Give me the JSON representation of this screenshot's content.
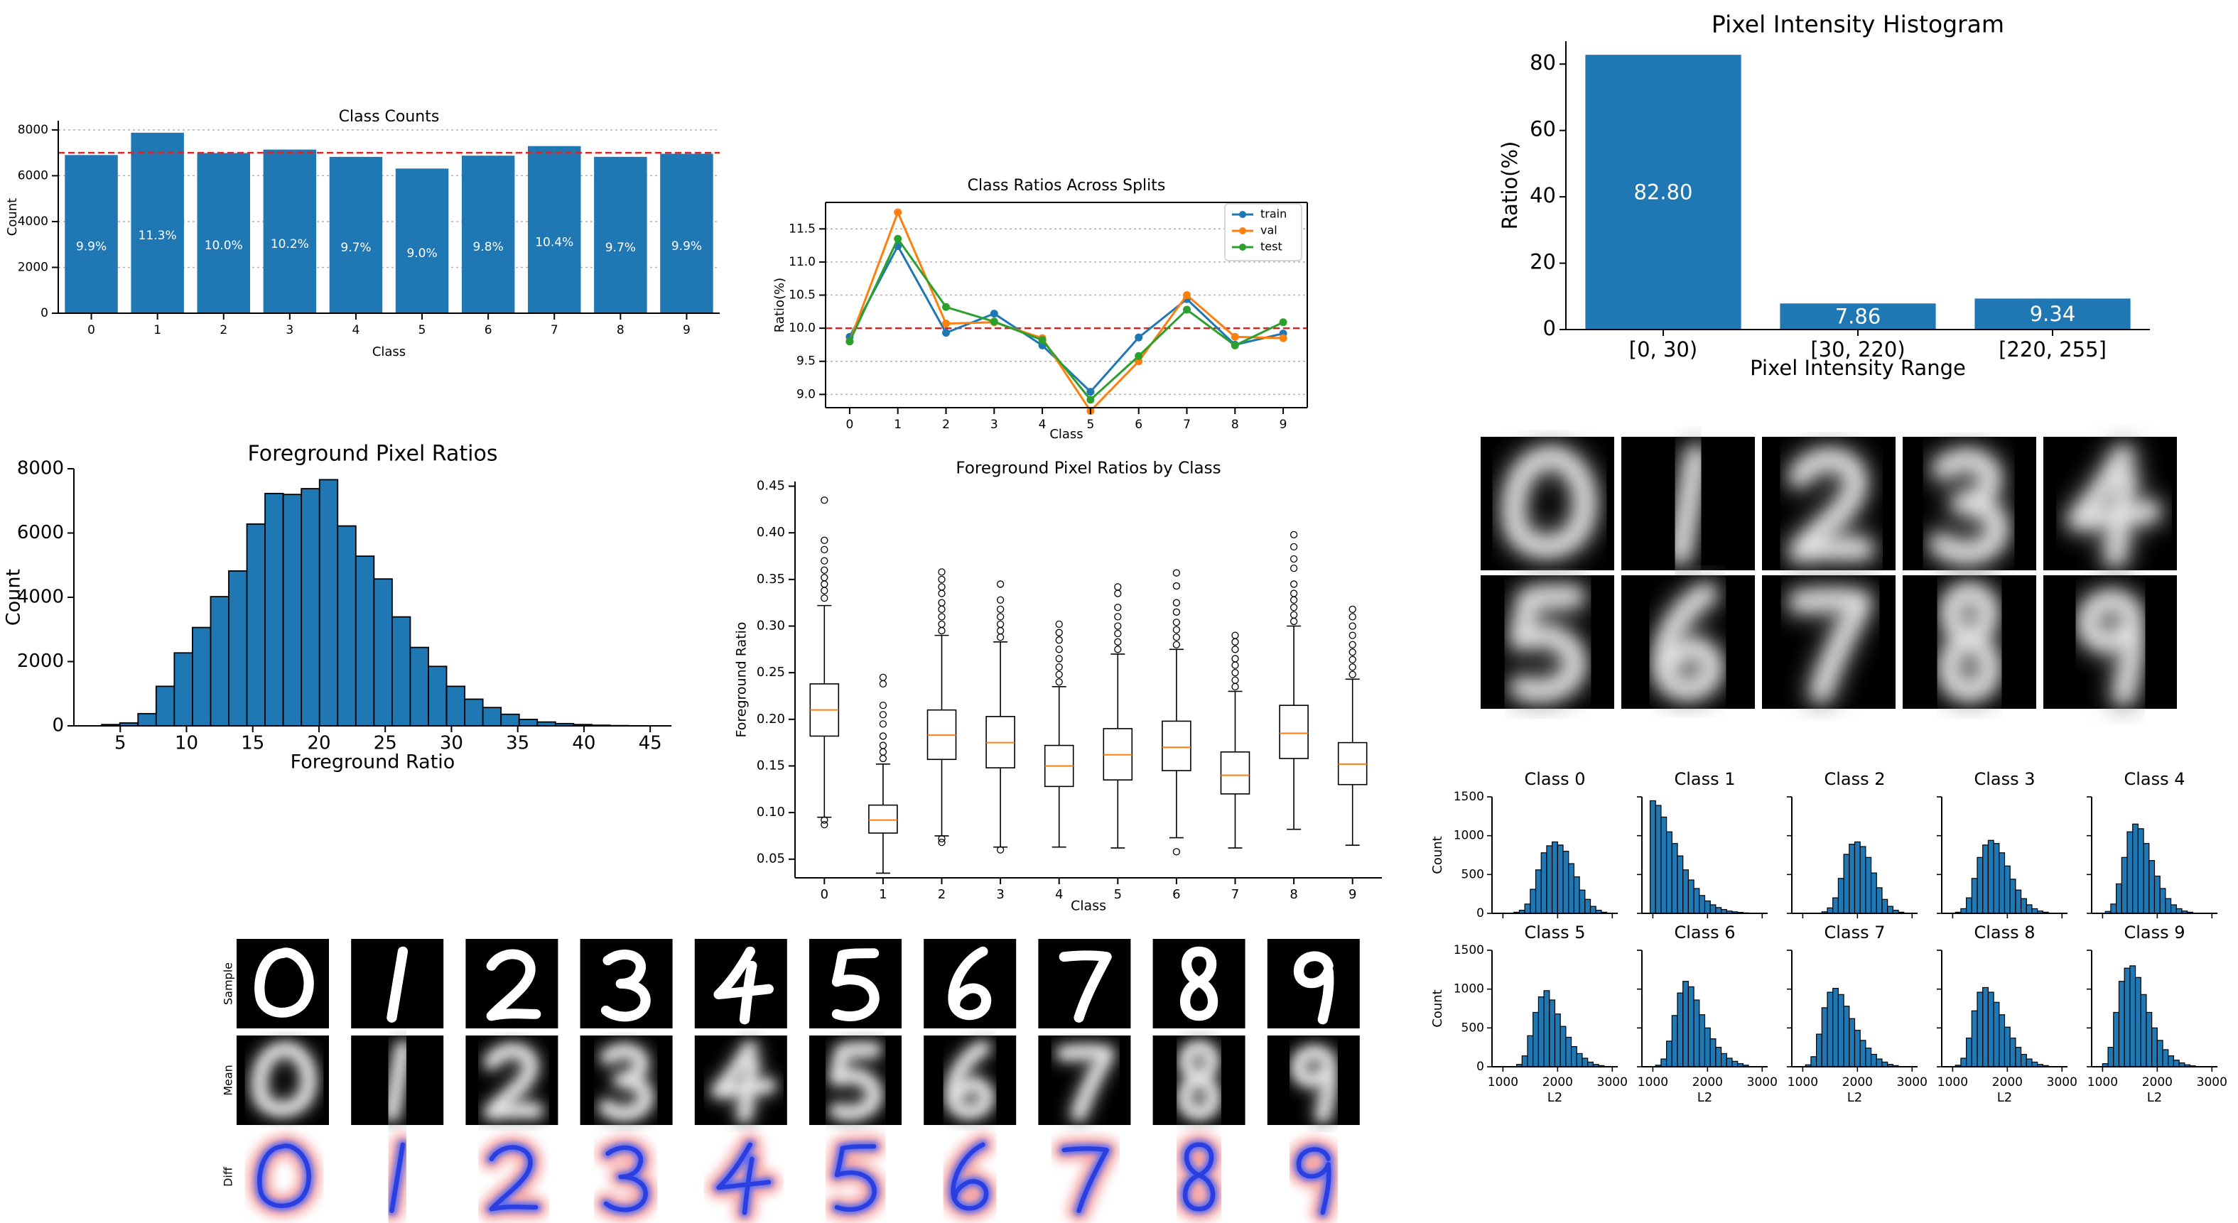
{
  "colors": {
    "bar": "#1f77b4",
    "train": "#1f77b4",
    "val": "#ff7f0e",
    "test": "#2ca02c",
    "ref": "#d62728",
    "median": "#ff7f0e"
  },
  "chart_data": [
    {
      "id": "class_counts",
      "type": "bar",
      "title": "Class Counts",
      "xlabel": "Class",
      "ylabel": "Count",
      "categories": [
        "0",
        "1",
        "2",
        "3",
        "4",
        "5",
        "6",
        "7",
        "8",
        "9"
      ],
      "values": [
        6903,
        7877,
        6990,
        7141,
        6824,
        6313,
        6876,
        7293,
        6825,
        6958
      ],
      "labels": [
        "9.9%",
        "11.3%",
        "10.0%",
        "10.2%",
        "9.7%",
        "9.0%",
        "9.8%",
        "10.4%",
        "9.7%",
        "9.9%"
      ],
      "ylim": [
        0,
        8400
      ],
      "yticks": [
        0,
        2000,
        4000,
        6000,
        8000
      ],
      "reference_line": 7000,
      "grid": "y-dotted"
    },
    {
      "id": "class_ratios",
      "type": "line",
      "title": "Class Ratios Across Splits",
      "xlabel": "Class",
      "ylabel": "Ratio(%)",
      "x": [
        0,
        1,
        2,
        3,
        4,
        5,
        6,
        7,
        8,
        9
      ],
      "series": [
        {
          "name": "train",
          "values": [
            9.87,
            11.24,
            9.93,
            10.22,
            9.74,
            9.04,
            9.86,
            10.44,
            9.75,
            9.92
          ]
        },
        {
          "name": "val",
          "values": [
            9.8,
            11.75,
            10.07,
            10.09,
            9.85,
            8.75,
            9.5,
            10.5,
            9.87,
            9.85
          ]
        },
        {
          "name": "test",
          "values": [
            9.8,
            11.35,
            10.32,
            10.1,
            9.82,
            8.92,
            9.58,
            10.28,
            9.74,
            10.09
          ]
        }
      ],
      "ylim": [
        8.8,
        11.9
      ],
      "yticks": [
        9.0,
        9.5,
        10.0,
        10.5,
        11.0,
        11.5
      ],
      "reference_line": 10.0,
      "legend": "top-right",
      "grid": "y-dotted"
    },
    {
      "id": "pixel_intensity",
      "type": "bar",
      "title": "Pixel Intensity Histogram",
      "xlabel": "Pixel Intensity Range",
      "ylabel": "Ratio(%)",
      "categories": [
        "[0, 30)",
        "[30, 220)",
        "[220, 255]"
      ],
      "values": [
        82.8,
        7.86,
        9.34
      ],
      "labels": [
        "82.80",
        "7.86",
        "9.34"
      ],
      "ylim": [
        0,
        86.9
      ],
      "yticks": [
        0,
        20,
        40,
        60,
        80
      ]
    },
    {
      "id": "foreground_hist",
      "type": "bar",
      "title": "Foreground Pixel Ratios",
      "xlabel": "Foreground Ratio",
      "ylabel": "Count",
      "bin_start": 3.6,
      "bin_width": 1.37,
      "counts": [
        40,
        90,
        380,
        1230,
        2270,
        3060,
        4020,
        4820,
        6280,
        7230,
        7200,
        7380,
        7660,
        6220,
        5280,
        4570,
        3390,
        2440,
        1850,
        1230,
        830,
        570,
        360,
        200,
        120,
        70,
        40,
        20,
        8,
        3
      ],
      "xlim": [
        1.5,
        46.6
      ],
      "xticks": [
        5,
        10,
        15,
        20,
        25,
        30,
        35,
        40,
        45
      ],
      "ylim": [
        0,
        8000
      ],
      "yticks": [
        0,
        2000,
        4000,
        6000,
        8000
      ]
    },
    {
      "id": "foreground_box",
      "type": "box",
      "title": "Foreground Pixel Ratios by Class",
      "xlabel": "Class",
      "ylabel": "Foreground Ratio",
      "categories": [
        "0",
        "1",
        "2",
        "3",
        "4",
        "5",
        "6",
        "7",
        "8",
        "9"
      ],
      "boxes": [
        {
          "whislo": 0.095,
          "q1": 0.182,
          "med": 0.21,
          "q3": 0.238,
          "whishi": 0.322,
          "fliers": [
            0.087,
            0.092,
            0.33,
            0.338,
            0.345,
            0.352,
            0.36,
            0.37,
            0.382,
            0.392,
            0.435
          ]
        },
        {
          "whislo": 0.035,
          "q1": 0.078,
          "med": 0.092,
          "q3": 0.108,
          "whishi": 0.152,
          "fliers": [
            0.158,
            0.165,
            0.172,
            0.182,
            0.195,
            0.205,
            0.215,
            0.238,
            0.245
          ]
        },
        {
          "whislo": 0.075,
          "q1": 0.157,
          "med": 0.183,
          "q3": 0.21,
          "whishi": 0.29,
          "fliers": [
            0.068,
            0.072,
            0.295,
            0.302,
            0.31,
            0.318,
            0.325,
            0.335,
            0.342,
            0.35,
            0.358
          ]
        },
        {
          "whislo": 0.063,
          "q1": 0.148,
          "med": 0.175,
          "q3": 0.203,
          "whishi": 0.283,
          "fliers": [
            0.06,
            0.288,
            0.295,
            0.302,
            0.31,
            0.318,
            0.328,
            0.345
          ]
        },
        {
          "whislo": 0.063,
          "q1": 0.128,
          "med": 0.15,
          "q3": 0.172,
          "whishi": 0.235,
          "fliers": [
            0.24,
            0.248,
            0.256,
            0.265,
            0.275,
            0.285,
            0.293,
            0.302
          ]
        },
        {
          "whislo": 0.062,
          "q1": 0.135,
          "med": 0.162,
          "q3": 0.19,
          "whishi": 0.27,
          "fliers": [
            0.275,
            0.283,
            0.292,
            0.3,
            0.31,
            0.32,
            0.335,
            0.342
          ]
        },
        {
          "whislo": 0.073,
          "q1": 0.145,
          "med": 0.17,
          "q3": 0.198,
          "whishi": 0.275,
          "fliers": [
            0.058,
            0.28,
            0.288,
            0.296,
            0.304,
            0.315,
            0.325,
            0.343,
            0.357
          ]
        },
        {
          "whislo": 0.062,
          "q1": 0.12,
          "med": 0.14,
          "q3": 0.165,
          "whishi": 0.23,
          "fliers": [
            0.235,
            0.242,
            0.25,
            0.258,
            0.265,
            0.275,
            0.283,
            0.29
          ]
        },
        {
          "whislo": 0.082,
          "q1": 0.158,
          "med": 0.185,
          "q3": 0.215,
          "whishi": 0.3,
          "fliers": [
            0.305,
            0.312,
            0.32,
            0.328,
            0.335,
            0.345,
            0.362,
            0.372,
            0.385,
            0.398
          ]
        },
        {
          "whislo": 0.065,
          "q1": 0.13,
          "med": 0.152,
          "q3": 0.175,
          "whishi": 0.243,
          "fliers": [
            0.248,
            0.256,
            0.264,
            0.272,
            0.28,
            0.29,
            0.3,
            0.31,
            0.318
          ]
        }
      ],
      "ylim": [
        0.03,
        0.455
      ],
      "yticks": [
        0.05,
        0.1,
        0.15,
        0.2,
        0.25,
        0.3,
        0.35,
        0.4,
        0.45
      ]
    },
    {
      "id": "l2_hists",
      "type": "histogram-grid",
      "xlabel": "L2",
      "ylabel": "Count",
      "xlim": [
        800,
        3100
      ],
      "xticks": [
        1000,
        2000,
        3000
      ],
      "ylim": [
        0,
        1500
      ],
      "yticks": [
        0,
        500,
        1000,
        1500
      ],
      "panels": [
        {
          "title": "Class 0",
          "bin_start": 1200,
          "bin_width": 100,
          "counts": [
            15,
            40,
            120,
            310,
            560,
            780,
            870,
            920,
            880,
            800,
            640,
            470,
            300,
            180,
            90,
            40,
            15
          ]
        },
        {
          "title": "Class 1",
          "bin_start": 950,
          "bin_width": 100,
          "counts": [
            1450,
            1390,
            1240,
            1050,
            900,
            740,
            560,
            430,
            320,
            230,
            160,
            110,
            75,
            50,
            30,
            20,
            12,
            6
          ]
        },
        {
          "title": "Class 2",
          "bin_start": 1350,
          "bin_width": 100,
          "counts": [
            20,
            70,
            200,
            450,
            760,
            890,
            920,
            860,
            720,
            520,
            330,
            180,
            90,
            40,
            15
          ]
        },
        {
          "title": "Class 3",
          "bin_start": 1050,
          "bin_width": 100,
          "counts": [
            15,
            60,
            200,
            450,
            720,
            880,
            940,
            900,
            780,
            610,
            440,
            300,
            190,
            110,
            60,
            30,
            15
          ]
        },
        {
          "title": "Class 4",
          "bin_start": 1050,
          "bin_width": 100,
          "counts": [
            25,
            120,
            380,
            720,
            1050,
            1150,
            1090,
            900,
            680,
            480,
            320,
            190,
            110,
            60,
            30,
            15
          ]
        },
        {
          "title": "Class 5",
          "bin_start": 1250,
          "bin_width": 100,
          "counts": [
            30,
            140,
            400,
            700,
            900,
            980,
            860,
            680,
            520,
            380,
            260,
            170,
            110,
            60,
            30,
            15
          ]
        },
        {
          "title": "Class 6",
          "bin_start": 1050,
          "bin_width": 100,
          "counts": [
            20,
            100,
            330,
            660,
            950,
            1100,
            1030,
            860,
            670,
            500,
            360,
            250,
            170,
            110,
            70,
            40,
            20
          ]
        },
        {
          "title": "Class 7",
          "bin_start": 1050,
          "bin_width": 100,
          "counts": [
            25,
            130,
            420,
            760,
            960,
            1010,
            930,
            780,
            620,
            470,
            340,
            240,
            160,
            100,
            60,
            30,
            15
          ]
        },
        {
          "title": "Class 8",
          "bin_start": 1050,
          "bin_width": 100,
          "counts": [
            20,
            110,
            370,
            720,
            960,
            1020,
            960,
            830,
            670,
            510,
            370,
            250,
            160,
            100,
            60,
            30,
            15
          ]
        },
        {
          "title": "Class 9",
          "bin_start": 1000,
          "bin_width": 100,
          "counts": [
            40,
            250,
            700,
            1100,
            1270,
            1300,
            1150,
            930,
            700,
            500,
            340,
            220,
            140,
            85,
            50,
            25,
            12
          ]
        }
      ]
    }
  ],
  "image_grids": {
    "rows_ylabels": [
      "Sample",
      "Mean",
      "Diff"
    ],
    "digits": [
      "0",
      "1",
      "2",
      "3",
      "4",
      "5",
      "6",
      "7",
      "8",
      "9"
    ]
  }
}
